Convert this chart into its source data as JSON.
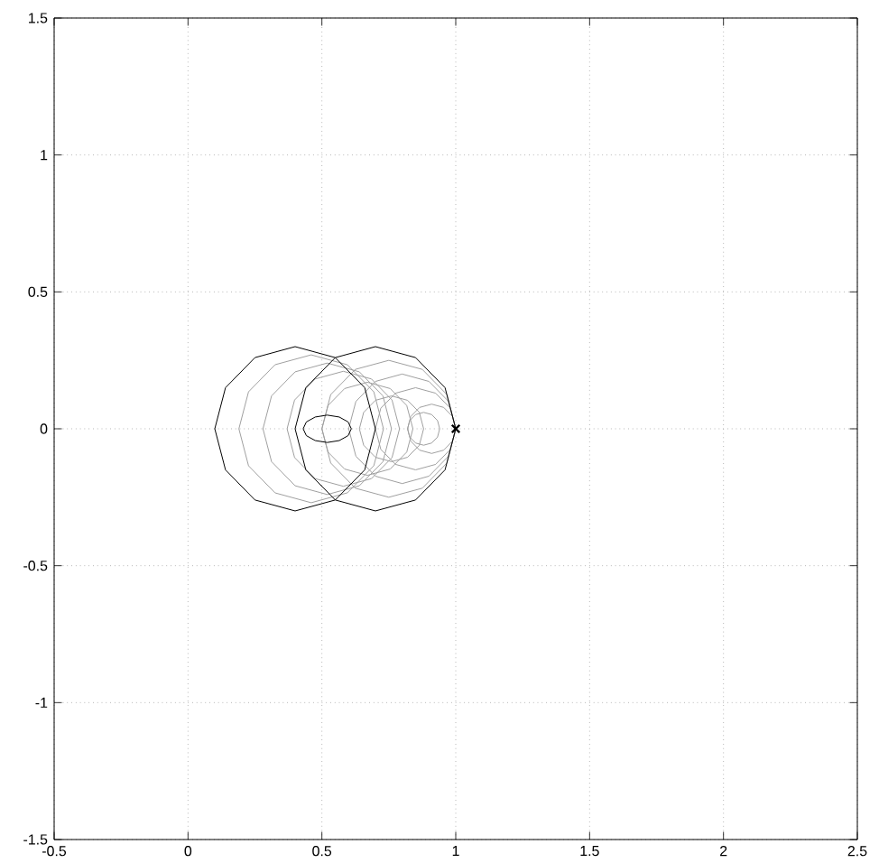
{
  "chart_data": {
    "type": "line",
    "xlim": [
      -0.5,
      2.5
    ],
    "ylim": [
      -1.5,
      1.5
    ],
    "xticks": [
      -0.5,
      0,
      0.5,
      1,
      1.5,
      2,
      2.5
    ],
    "yticks": [
      -1.5,
      -1,
      -0.5,
      0,
      0.5,
      1,
      1.5
    ],
    "grid": true,
    "series": [
      {
        "color": "#a0a0a0",
        "x": [
          0.73,
          0.694,
          0.595,
          0.46,
          0.325,
          0.226,
          0.19
        ],
        "values": [
          0,
          0.135,
          0.234,
          0.27,
          0.234,
          0.135,
          0
        ]
      },
      {
        "color": "#a0a0a0",
        "x": [
          0.19,
          0.226,
          0.325,
          0.46,
          0.595,
          0.694,
          0.73
        ],
        "values": [
          0,
          -0.135,
          -0.234,
          -0.27,
          -0.234,
          -0.135,
          0
        ]
      },
      {
        "color": "#a0a0a0",
        "x": [
          0.76,
          0.728,
          0.64,
          0.52,
          0.4,
          0.312,
          0.28
        ],
        "values": [
          0,
          0.12,
          0.208,
          0.24,
          0.208,
          0.12,
          0
        ]
      },
      {
        "color": "#a0a0a0",
        "x": [
          0.28,
          0.312,
          0.4,
          0.52,
          0.64,
          0.728,
          0.76
        ],
        "values": [
          0,
          -0.12,
          -0.208,
          -0.24,
          -0.208,
          -0.12,
          0
        ]
      },
      {
        "color": "#a0a0a0",
        "x": [
          0.79,
          0.762,
          0.685,
          0.58,
          0.475,
          0.398,
          0.37
        ],
        "values": [
          0,
          0.105,
          0.182,
          0.21,
          0.182,
          0.105,
          0
        ]
      },
      {
        "color": "#a0a0a0",
        "x": [
          0.37,
          0.398,
          0.475,
          0.58,
          0.685,
          0.762,
          0.79
        ],
        "values": [
          0,
          -0.105,
          -0.182,
          -0.21,
          -0.182,
          -0.105,
          0
        ]
      },
      {
        "color": "#a0a0a0",
        "x": [
          0.84,
          0.817,
          0.755,
          0.67,
          0.585,
          0.523,
          0.5
        ],
        "values": [
          0,
          0.085,
          0.147,
          0.17,
          0.147,
          0.085,
          0
        ]
      },
      {
        "color": "#a0a0a0",
        "x": [
          0.5,
          0.523,
          0.585,
          0.67,
          0.755,
          0.817,
          0.84
        ],
        "values": [
          0,
          -0.085,
          -0.147,
          -0.17,
          -0.147,
          -0.085,
          0
        ]
      },
      {
        "color": "#a0a0a0",
        "x": [
          0.88,
          0.864,
          0.82,
          0.76,
          0.7,
          0.656,
          0.64
        ],
        "values": [
          0,
          0.06,
          0.104,
          0.12,
          0.104,
          0.06,
          0
        ]
      },
      {
        "color": "#a0a0a0",
        "x": [
          0.64,
          0.656,
          0.7,
          0.76,
          0.82,
          0.864,
          0.88
        ],
        "values": [
          0,
          -0.06,
          -0.104,
          -0.12,
          -0.104,
          -0.06,
          0
        ]
      },
      {
        "color": "#a0a0a0",
        "x": [
          0.94,
          0.932,
          0.91,
          0.88,
          0.85,
          0.828,
          0.82
        ],
        "values": [
          0,
          0.03,
          0.052,
          0.06,
          0.052,
          0.03,
          0
        ]
      },
      {
        "color": "#a0a0a0",
        "x": [
          0.82,
          0.828,
          0.85,
          0.88,
          0.91,
          0.932,
          0.94
        ],
        "values": [
          0,
          -0.03,
          -0.052,
          -0.06,
          -0.052,
          -0.03,
          0
        ]
      },
      {
        "color": "#a0a0a0",
        "x": [
          1,
          0.967,
          0.875,
          0.75,
          0.625,
          0.533,
          0.5
        ],
        "values": [
          0,
          0.125,
          0.217,
          0.25,
          0.217,
          0.125,
          0
        ]
      },
      {
        "color": "#a0a0a0",
        "x": [
          0.5,
          0.533,
          0.625,
          0.75,
          0.875,
          0.967,
          1
        ],
        "values": [
          0,
          -0.125,
          -0.217,
          -0.25,
          -0.217,
          -0.125,
          0
        ]
      },
      {
        "color": "#a0a0a0",
        "x": [
          1,
          0.973,
          0.9,
          0.8,
          0.7,
          0.627,
          0.6
        ],
        "values": [
          0,
          0.1,
          0.173,
          0.2,
          0.173,
          0.1,
          0
        ]
      },
      {
        "color": "#a0a0a0",
        "x": [
          0.6,
          0.627,
          0.7,
          0.8,
          0.9,
          0.973,
          1
        ],
        "values": [
          0,
          -0.1,
          -0.173,
          -0.2,
          -0.173,
          -0.1,
          0
        ]
      },
      {
        "color": "#a0a0a0",
        "x": [
          1,
          0.98,
          0.925,
          0.85,
          0.775,
          0.72,
          0.7
        ],
        "values": [
          0,
          0.075,
          0.13,
          0.15,
          0.13,
          0.075,
          0
        ]
      },
      {
        "color": "#a0a0a0",
        "x": [
          0.7,
          0.72,
          0.775,
          0.85,
          0.925,
          0.98,
          1
        ],
        "values": [
          0,
          -0.075,
          -0.13,
          -0.15,
          -0.13,
          -0.075,
          0
        ]
      },
      {
        "color": "#a0a0a0",
        "x": [
          1,
          0.988,
          0.955,
          0.91,
          0.865,
          0.832,
          0.82
        ],
        "values": [
          0,
          0.045,
          0.078,
          0.09,
          0.078,
          0.045,
          0
        ]
      },
      {
        "color": "#a0a0a0",
        "x": [
          0.82,
          0.832,
          0.865,
          0.91,
          0.955,
          0.988,
          1
        ],
        "values": [
          0,
          -0.045,
          -0.078,
          -0.09,
          -0.078,
          -0.045,
          0
        ]
      },
      {
        "color": "#000000",
        "x": [
          0.7,
          0.66,
          0.55,
          0.4,
          0.25,
          0.14,
          0.1
        ],
        "values": [
          0,
          0.15,
          0.26,
          0.3,
          0.26,
          0.15,
          0
        ]
      },
      {
        "color": "#000000",
        "x": [
          0.1,
          0.14,
          0.25,
          0.4,
          0.55,
          0.66,
          0.7
        ],
        "values": [
          0,
          -0.15,
          -0.26,
          -0.3,
          -0.26,
          -0.15,
          0
        ]
      },
      {
        "color": "#000000",
        "x": [
          1,
          0.96,
          0.85,
          0.7,
          0.55,
          0.44,
          0.4
        ],
        "values": [
          0,
          0.15,
          0.26,
          0.3,
          0.26,
          0.15,
          0
        ]
      },
      {
        "color": "#000000",
        "x": [
          0.4,
          0.44,
          0.55,
          0.7,
          0.85,
          0.96,
          1
        ],
        "values": [
          0,
          -0.15,
          -0.26,
          -0.3,
          -0.26,
          -0.15,
          0
        ]
      },
      {
        "color": "#000000",
        "x": [
          0.61,
          0.598,
          0.565,
          0.52,
          0.475,
          0.442,
          0.43
        ],
        "values": [
          0,
          0.025,
          0.043,
          0.05,
          0.043,
          0.025,
          0
        ]
      },
      {
        "color": "#000000",
        "x": [
          0.43,
          0.442,
          0.475,
          0.52,
          0.565,
          0.598,
          0.61
        ],
        "values": [
          0,
          -0.025,
          -0.043,
          -0.05,
          -0.043,
          -0.025,
          0
        ]
      },
      {
        "type": "scatter",
        "marker": "cross",
        "color": "#000000",
        "x": [
          1
        ],
        "values": [
          0
        ]
      }
    ]
  }
}
